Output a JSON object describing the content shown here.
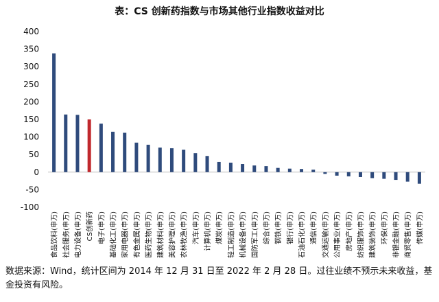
{
  "chart_data": {
    "type": "bar",
    "title": "表：CS 创新药指数与市场其他行业指数收益对比",
    "categories": [
      "食品饮料(申万)",
      "社会服务(申万)",
      "电力设备(申万)",
      "CS创新药",
      "电子(申万)",
      "基础化工(申万)",
      "家用电器(申万)",
      "有色金属(申万)",
      "医药生物(申万)",
      "建筑材料(申万)",
      "美容护理(申万)",
      "农林牧渔(申万)",
      "汽车(申万)",
      "计算机(申万)",
      "煤炭(申万)",
      "轻工制造(申万)",
      "机械设备(申万)",
      "国防军工(申万)",
      "综合(申万)",
      "钢铁(申万)",
      "银行(申万)",
      "石油石化(申万)",
      "通信(申万)",
      "交通运输(申万)",
      "公用事业(申万)",
      "房地产(申万)",
      "纺织服饰(申万)",
      "建筑装饰(申万)",
      "环保(申万)",
      "非银金融(申万)",
      "商贸零售(申万)",
      "传媒(申万)"
    ],
    "values": [
      338,
      164,
      163,
      150,
      138,
      115,
      112,
      84,
      78,
      70,
      68,
      64,
      54,
      46,
      29,
      27,
      23,
      19,
      17,
      12,
      10,
      9,
      7,
      -5,
      -10,
      -12,
      -14,
      -17,
      -19,
      -22,
      -27,
      -33
    ],
    "highlight_category": "CS创新药",
    "colors": {
      "default": "#2f4b7c",
      "highlight": "#c0282d"
    },
    "ylim": [
      -100,
      400
    ],
    "yticks": [
      -100,
      -50,
      0,
      50,
      100,
      150,
      200,
      250,
      300,
      350,
      400
    ],
    "xlabel": "",
    "ylabel": "",
    "grid": false
  },
  "footnote": "数据来源：Wind，统计区间为 2014 年 12 月 31 日至 2022 年 2 月 28 日。过往业绩不预示未来收益，基金投资有风险。"
}
